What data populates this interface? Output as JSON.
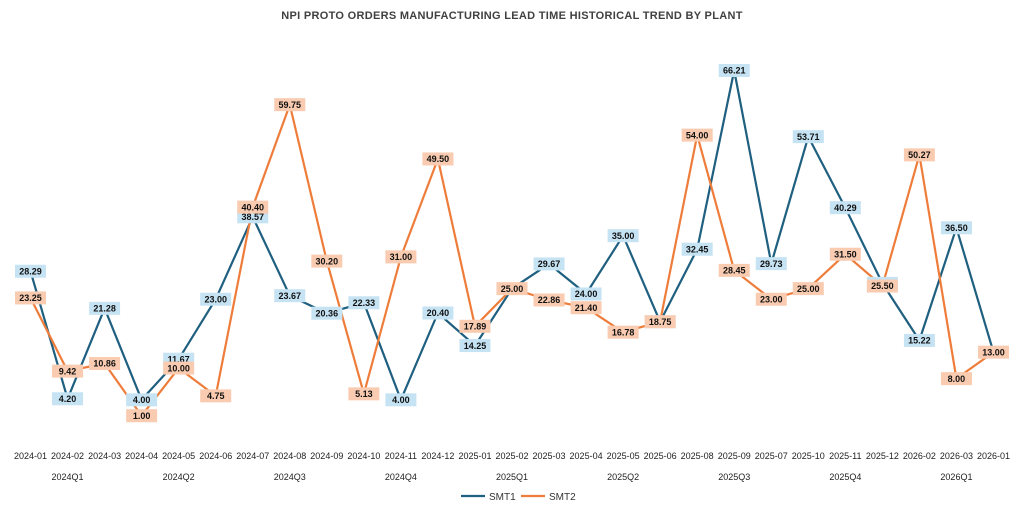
{
  "chart_data": {
    "type": "line",
    "title": "NPI PROTO ORDERS MANUFACTURING LEAD TIME HISTORICAL TREND BY PLANT",
    "xlabel": "",
    "ylabel": "",
    "ylim": [
      0,
      68
    ],
    "grid": false,
    "legend_position": "bottom",
    "categories": [
      "2024-01",
      "2024-02",
      "2024-03",
      "2024-04",
      "2024-05",
      "2024-06",
      "2024-07",
      "2024-08",
      "2024-09",
      "2024-10",
      "2024-11",
      "2024-12",
      "2025-01",
      "2025-02",
      "2025-03",
      "2025-04",
      "2025-05",
      "2025-06",
      "2025-08",
      "2025-09",
      "2025-07",
      "2025-10",
      "2025-11",
      "2025-12",
      "2026-02",
      "2026-03",
      "2026-01"
    ],
    "groups": [
      {
        "label": "2024Q1",
        "start": 0,
        "end": 2
      },
      {
        "label": "2024Q2",
        "start": 3,
        "end": 5
      },
      {
        "label": "2024Q3",
        "start": 6,
        "end": 8
      },
      {
        "label": "2024Q4",
        "start": 9,
        "end": 11
      },
      {
        "label": "2025Q1",
        "start": 12,
        "end": 14
      },
      {
        "label": "2025Q2",
        "start": 15,
        "end": 17
      },
      {
        "label": "2025Q3",
        "start": 18,
        "end": 20
      },
      {
        "label": "2025Q4",
        "start": 21,
        "end": 23
      },
      {
        "label": "2026Q1",
        "start": 24,
        "end": 26
      }
    ],
    "series": [
      {
        "name": "SMT1",
        "color": "#1f5f7f",
        "label_bg": "#c5e3f3",
        "values": [
          28.29,
          4.2,
          21.28,
          4.0,
          11.67,
          23.0,
          38.57,
          23.67,
          20.36,
          22.33,
          4.0,
          20.4,
          14.25,
          25.0,
          29.67,
          24.0,
          35.0,
          18.75,
          32.45,
          66.21,
          29.73,
          53.71,
          40.29,
          26.0,
          15.22,
          36.5,
          13.0
        ],
        "labels": [
          "28.29",
          "4.20",
          "21.28",
          "4.00",
          "11.67",
          "23.00",
          "38.57",
          "23.67",
          "20.36",
          "22.33",
          "4.00",
          "20.40",
          "14.25",
          "",
          "29.67",
          "24.00",
          "35.00",
          "18.75",
          "32.45",
          "66.21",
          "29.73",
          "53.71",
          "40.29",
          "26.00",
          "15.22",
          "36.50",
          ""
        ]
      },
      {
        "name": "SMT2",
        "color": "#ee7d3b",
        "label_bg": "#f9cbb0",
        "values": [
          23.25,
          9.42,
          10.86,
          1.0,
          10.0,
          4.75,
          40.4,
          59.75,
          30.2,
          5.13,
          31.0,
          49.5,
          17.89,
          25.0,
          22.86,
          21.4,
          16.78,
          18.75,
          54.0,
          28.45,
          23.0,
          25.0,
          31.5,
          25.5,
          50.27,
          8.0,
          13.0
        ],
        "labels": [
          "23.25",
          "9.42",
          "10.86",
          "1.00",
          "10.00",
          "4.75",
          "40.40",
          "59.75",
          "30.20",
          "5.13",
          "31.00",
          "49.50",
          "17.89",
          "25.00",
          "22.86",
          "21.40",
          "16.78",
          "18.75",
          "54.00",
          "28.45",
          "23.00",
          "25.00",
          "31.50",
          "25.50",
          "50.27",
          "8.00",
          "13.00"
        ]
      }
    ]
  }
}
